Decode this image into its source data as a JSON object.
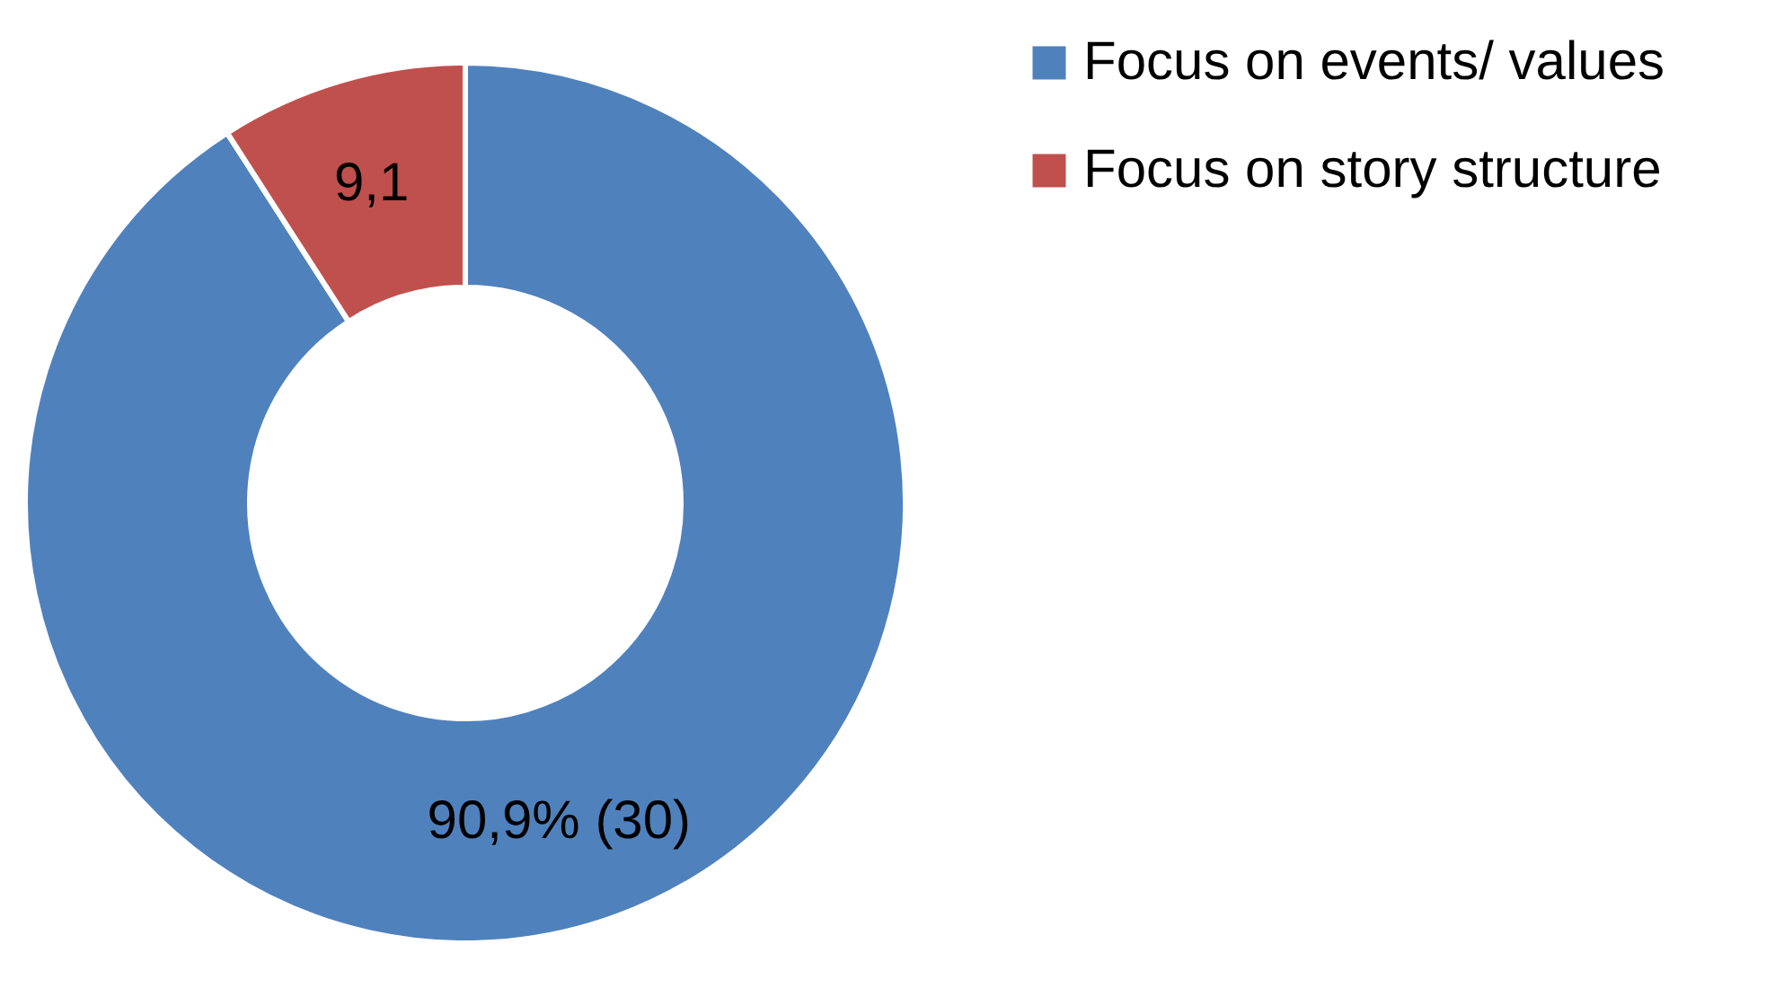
{
  "chart_data": {
    "type": "donut",
    "categories": [
      "Focus on events/ values",
      "Focus on story structure"
    ],
    "values": [
      90.9,
      9.1
    ],
    "colors": [
      "#4f81bd",
      "#c0504d"
    ],
    "value_labels": [
      "90,9% (30)",
      "9,1"
    ],
    "legend": "right"
  }
}
